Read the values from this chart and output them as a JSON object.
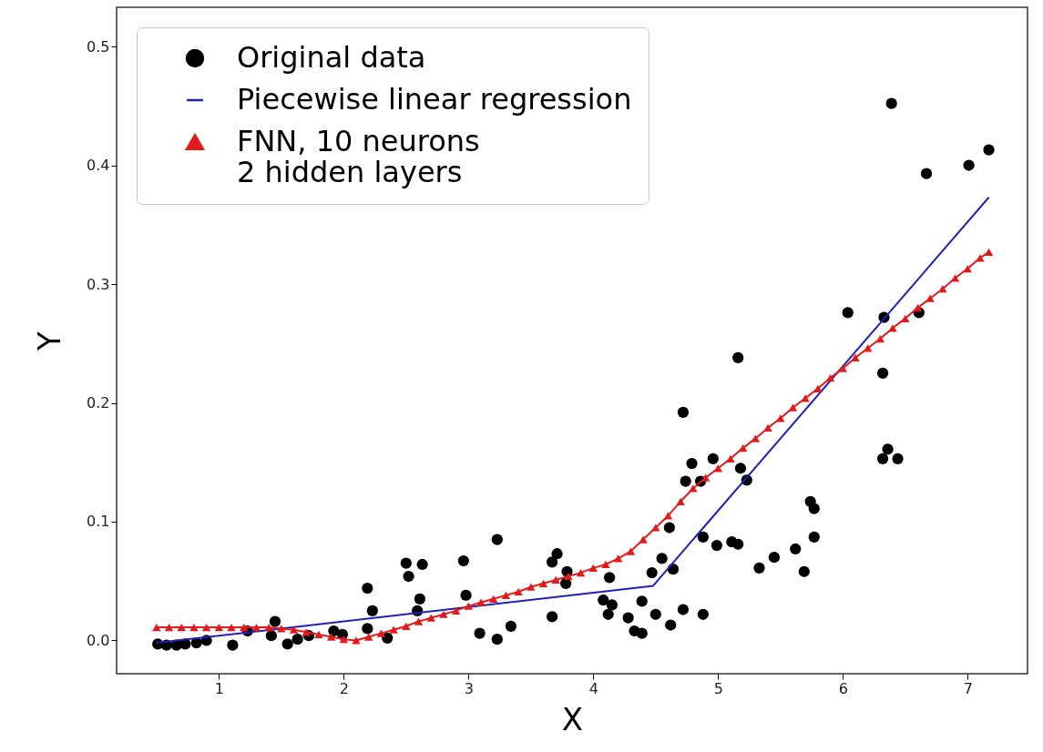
{
  "chart_data": {
    "type": "scatter",
    "xlabel": "X",
    "ylabel": "Y",
    "xlim": [
      0.18,
      7.48
    ],
    "ylim": [
      -0.028,
      0.533
    ],
    "xticks": [
      1,
      2,
      3,
      4,
      5,
      6,
      7
    ],
    "yticks": [
      {
        "value": 0,
        "label": "0.0"
      },
      0.1,
      0.2,
      0.3,
      0.4,
      0.5
    ],
    "grid": false,
    "legend": "top left",
    "series": [
      {
        "name": "Original data",
        "marker": "circle",
        "color": "#000000",
        "x": [
          0.51,
          0.58,
          0.66,
          0.73,
          0.82,
          0.9,
          1.11,
          1.23,
          1.45,
          1.42,
          1.55,
          1.63,
          1.72,
          1.92,
          1.99,
          2.19,
          2.23,
          2.19,
          2.35,
          2.5,
          2.52,
          2.63,
          2.61,
          2.59,
          2.96,
          2.98,
          3.09,
          3.23,
          3.23,
          3.34,
          3.67,
          3.71,
          3.67,
          3.78,
          3.79,
          4.13,
          4.08,
          4.15,
          4.12,
          4.28,
          4.33,
          4.39,
          4.39,
          4.5,
          4.62,
          4.72,
          4.88,
          4.47,
          4.55,
          4.64,
          4.61,
          4.88,
          4.99,
          5.11,
          5.16,
          5.33,
          5.45,
          5.62,
          5.69,
          5.77,
          5.74,
          5.77,
          4.74,
          4.86,
          4.79,
          4.96,
          5.18,
          5.23,
          4.72,
          5.16,
          6.32,
          6.36,
          6.32,
          6.44,
          6.67,
          7.01,
          7.17,
          6.39,
          6.61,
          6.04,
          6.33
        ],
        "values": [
          -0.003,
          -0.004,
          -0.004,
          -0.003,
          -0.002,
          0.0,
          -0.004,
          0.008,
          0.016,
          0.004,
          -0.003,
          0.001,
          0.004,
          0.008,
          0.005,
          0.044,
          0.025,
          0.01,
          0.002,
          0.065,
          0.054,
          0.064,
          0.035,
          0.025,
          0.067,
          0.038,
          0.006,
          0.085,
          0.001,
          0.012,
          0.066,
          0.073,
          0.02,
          0.048,
          0.058,
          0.053,
          0.034,
          0.03,
          0.022,
          0.019,
          0.008,
          0.006,
          0.033,
          0.022,
          0.013,
          0.026,
          0.022,
          0.057,
          0.069,
          0.06,
          0.095,
          0.087,
          0.08,
          0.083,
          0.081,
          0.061,
          0.07,
          0.077,
          0.058,
          0.087,
          0.117,
          0.111,
          0.134,
          0.134,
          0.149,
          0.153,
          0.145,
          0.135,
          0.192,
          0.238,
          0.225,
          0.161,
          0.153,
          0.153,
          0.393,
          0.4,
          0.413,
          0.452,
          0.276,
          0.276,
          0.272
        ]
      },
      {
        "name": "Piecewise linear regression",
        "type": "line",
        "marker": "none",
        "color": "#1f1fbf",
        "x": [
          0.5,
          4.48,
          7.17
        ],
        "values": [
          -0.002,
          0.046,
          0.373
        ]
      },
      {
        "name": "FNN, 10 neurons\n2 hidden layers",
        "type": "line",
        "marker": "triangle",
        "color": "#e31a1c",
        "x": [
          0.5,
          0.6,
          0.7,
          0.8,
          0.9,
          1.0,
          1.1,
          1.2,
          1.3,
          1.4,
          1.5,
          1.6,
          1.7,
          1.8,
          1.9,
          2.0,
          2.1,
          2.2,
          2.3,
          2.4,
          2.5,
          2.6,
          2.7,
          2.8,
          2.9,
          3.0,
          3.1,
          3.2,
          3.3,
          3.4,
          3.5,
          3.6,
          3.7,
          3.8,
          3.9,
          4.0,
          4.1,
          4.2,
          4.3,
          4.4,
          4.5,
          4.6,
          4.7,
          4.8,
          4.9,
          5.0,
          5.1,
          5.2,
          5.3,
          5.4,
          5.5,
          5.6,
          5.7,
          5.8,
          5.9,
          6.0,
          6.1,
          6.2,
          6.3,
          6.4,
          6.5,
          6.6,
          6.7,
          6.8,
          6.9,
          7.0,
          7.1,
          7.17
        ],
        "values": [
          0.011,
          0.011,
          0.011,
          0.011,
          0.011,
          0.011,
          0.011,
          0.011,
          0.011,
          0.011,
          0.01,
          0.009,
          0.007,
          0.005,
          0.003,
          0.001,
          0.0,
          0.003,
          0.006,
          0.009,
          0.012,
          0.016,
          0.019,
          0.022,
          0.025,
          0.029,
          0.032,
          0.035,
          0.038,
          0.041,
          0.045,
          0.048,
          0.051,
          0.054,
          0.057,
          0.061,
          0.064,
          0.069,
          0.075,
          0.085,
          0.095,
          0.105,
          0.117,
          0.128,
          0.137,
          0.145,
          0.153,
          0.162,
          0.17,
          0.179,
          0.187,
          0.196,
          0.204,
          0.212,
          0.221,
          0.229,
          0.238,
          0.246,
          0.254,
          0.263,
          0.271,
          0.28,
          0.288,
          0.296,
          0.305,
          0.313,
          0.322,
          0.327
        ]
      }
    ]
  }
}
